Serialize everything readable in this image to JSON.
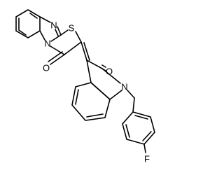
{
  "atoms": [
    {
      "label": "N"
    },
    {
      "label": "S"
    },
    {
      "label": "N"
    },
    {
      "label": "O"
    },
    {
      "label": "O"
    },
    {
      "label": "N"
    },
    {
      "label": "F"
    }
  ]
}
